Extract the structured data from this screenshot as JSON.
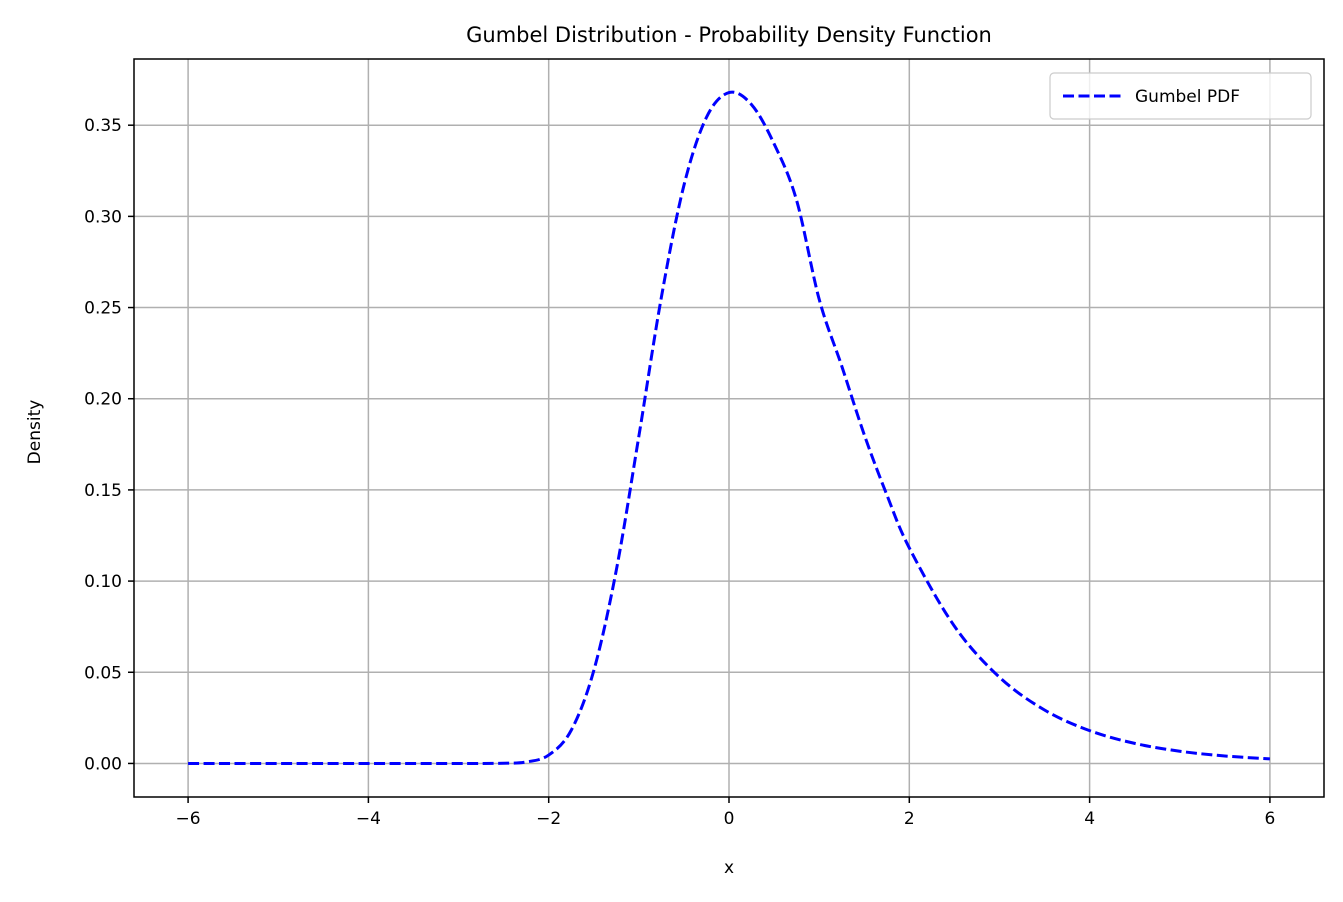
{
  "chart_data": {
    "type": "line",
    "title": "Gumbel Distribution - Probability Density Function",
    "xlabel": "x",
    "ylabel": "Density",
    "xlim": [
      -6.6,
      6.6
    ],
    "ylim": [
      -0.0184,
      0.3863
    ],
    "x_ticks": [
      -6,
      -4,
      -2,
      0,
      2,
      4,
      6
    ],
    "x_tick_labels": [
      "−6",
      "−4",
      "−2",
      "0",
      "2",
      "4",
      "6"
    ],
    "y_ticks": [
      0.0,
      0.05,
      0.1,
      0.15,
      0.2,
      0.25,
      0.3,
      0.35
    ],
    "y_tick_labels": [
      "0.00",
      "0.05",
      "0.10",
      "0.15",
      "0.20",
      "0.25",
      "0.30",
      "0.35"
    ],
    "grid": true,
    "legend_position": "top-right",
    "series": [
      {
        "name": "Gumbel PDF",
        "color": "#0000ff",
        "line_style": "dashed",
        "x": [
          -6.0,
          -5.0,
          -4.0,
          -3.0,
          -2.5,
          -2.25,
          -2.0,
          -1.75,
          -1.5,
          -1.25,
          -1.0,
          -0.75,
          -0.5,
          -0.25,
          0.0,
          0.25,
          0.5,
          0.75,
          1.0,
          1.25,
          1.5,
          1.75,
          2.0,
          2.5,
          3.0,
          3.5,
          4.0,
          4.5,
          5.0,
          5.5,
          6.0
        ],
        "y": [
          0.0,
          0.0,
          0.0,
          0.0,
          0.0001,
          0.0008,
          0.0046,
          0.0182,
          0.0509,
          0.106,
          0.1794,
          0.2557,
          0.317,
          0.3543,
          0.3679,
          0.3613,
          0.3398,
          0.3088,
          0.2546,
          0.218,
          0.1803,
          0.1474,
          0.1182,
          0.0753,
          0.0473,
          0.0293,
          0.018,
          0.011,
          0.0067,
          0.0041,
          0.0025
        ]
      }
    ]
  }
}
